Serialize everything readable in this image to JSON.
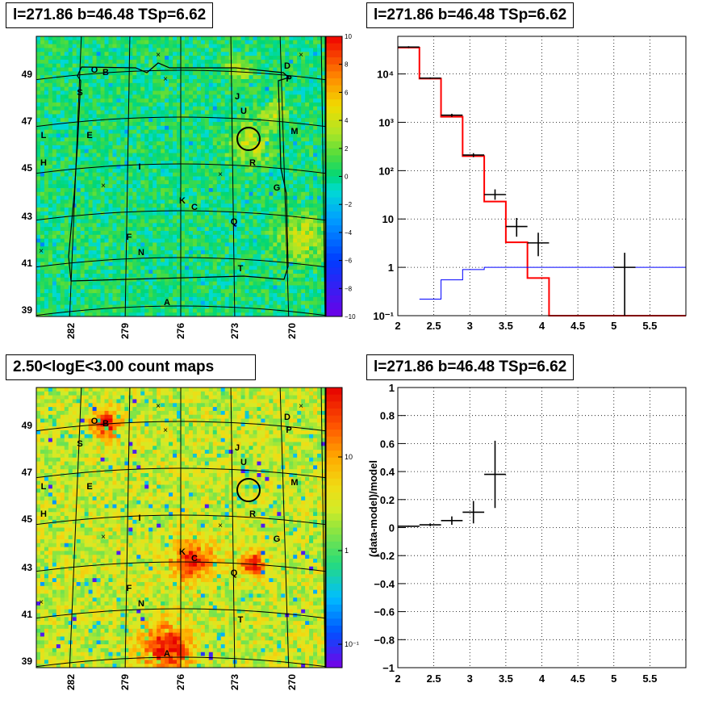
{
  "panels": {
    "tl_title": "l=271.86 b=46.48 TSp=6.62",
    "tr_title": "l=271.86 b=46.48 TSp=6.62",
    "bl_title": "2.50<logE<3.00 count maps",
    "br_title": "l=271.86 b=46.48 TSp=6.62"
  },
  "colors": {
    "model": "#ff0000",
    "background": "#0000ff",
    "data": "#000000"
  },
  "maps": {
    "lat_ticks": [
      "49",
      "47",
      "45",
      "43",
      "41",
      "39"
    ],
    "lon_ticks": [
      "282",
      "279",
      "276",
      "273",
      "270"
    ],
    "residual_scale": [
      "10",
      "8",
      "6",
      "4",
      "2",
      "0",
      "−2",
      "−4",
      "−6",
      "−8",
      "−10"
    ],
    "count_scale": [
      "10",
      "1",
      "10⁻¹"
    ],
    "source_letters": [
      "A",
      "B",
      "C",
      "D",
      "E",
      "F",
      "G",
      "H",
      "I",
      "J",
      "K",
      "L",
      "M",
      "N",
      "O",
      "P",
      "Q",
      "R",
      "S",
      "T",
      "U"
    ]
  },
  "chart_data": [
    {
      "type": "line",
      "title": "l=271.86 b=46.48 TSp=6.62",
      "xlabel": "",
      "ylabel": "",
      "xlim": [
        2,
        6
      ],
      "ylim": [
        0.1,
        60000
      ],
      "yscale": "log",
      "grid": true,
      "x_ticks": [
        "2",
        "2.5",
        "3",
        "3.5",
        "4",
        "4.5",
        "5",
        "5.5"
      ],
      "y_ticks": [
        "10⁻¹",
        "1",
        "10",
        "10²",
        "10³",
        "10⁴"
      ],
      "series": [
        {
          "style": "step",
          "color": "#ff0000",
          "bin_edges": [
            2.0,
            2.3,
            2.6,
            2.9,
            3.2,
            3.5,
            3.8,
            4.1,
            4.4,
            6.0
          ],
          "values": [
            35000,
            8000,
            1300,
            200,
            23,
            3.3,
            0.6,
            0.1,
            0.1
          ]
        },
        {
          "style": "step",
          "color": "#0000ff",
          "bin_edges": [
            2.3,
            2.6,
            2.9,
            3.2,
            6.0
          ],
          "values": [
            0.22,
            0.55,
            0.9,
            1.0
          ]
        },
        {
          "style": "errorbar",
          "color": "#000000",
          "x": [
            2.15,
            2.45,
            2.75,
            3.05,
            3.35,
            3.65,
            3.95,
            5.15
          ],
          "x_err": [
            0.15,
            0.15,
            0.15,
            0.15,
            0.15,
            0.15,
            0.15,
            0.15
          ],
          "y": [
            36000,
            8200,
            1400,
            210,
            32,
            7,
            3.2,
            1
          ],
          "y_low": [
            34500,
            7900,
            1300,
            190,
            25,
            4.3,
            1.7,
            0.1
          ],
          "y_high": [
            37500,
            8500,
            1500,
            230,
            41,
            10.5,
            5.2,
            2
          ]
        }
      ]
    },
    {
      "type": "scatter",
      "title": "l=271.86 b=46.48 TSp=6.62",
      "xlabel": "",
      "ylabel": "(data-model)/model",
      "xlim": [
        2,
        6
      ],
      "ylim": [
        -1,
        1
      ],
      "grid": true,
      "x_ticks": [
        "2",
        "2.5",
        "3",
        "3.5",
        "4",
        "4.5",
        "5",
        "5.5"
      ],
      "y_ticks": [
        "−1",
        "−0.8",
        "−0.6",
        "−0.4",
        "−0.2",
        "0",
        "0.2",
        "0.4",
        "0.6",
        "0.8",
        "1"
      ],
      "series": [
        {
          "style": "errorbar",
          "color": "#000000",
          "x": [
            2.15,
            2.45,
            2.75,
            3.05,
            3.35
          ],
          "x_err": [
            0.15,
            0.15,
            0.15,
            0.15,
            0.15
          ],
          "y": [
            0.01,
            0.02,
            0.05,
            0.11,
            0.38
          ],
          "y_low": [
            0.005,
            0.01,
            0.02,
            0.03,
            0.14
          ],
          "y_high": [
            0.015,
            0.03,
            0.08,
            0.19,
            0.62
          ]
        }
      ]
    }
  ]
}
